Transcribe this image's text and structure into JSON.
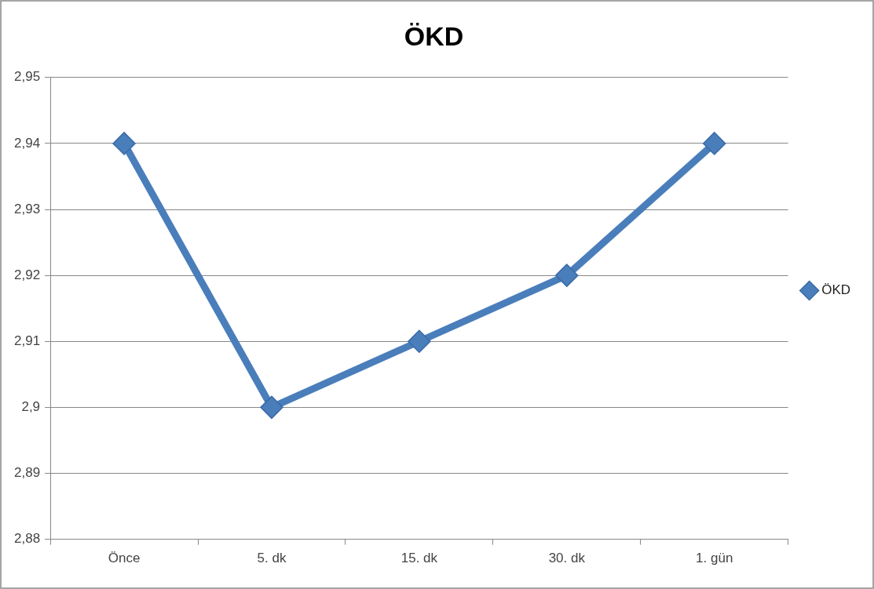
{
  "chart_data": {
    "type": "line",
    "title": "ÖKD",
    "categories": [
      "Önce",
      "5. dk",
      "15. dk",
      "30. dk",
      "1. gün"
    ],
    "series": [
      {
        "name": "ÖKD",
        "color": "#4a7ebb",
        "values": [
          2.94,
          2.9,
          2.91,
          2.92,
          2.94
        ]
      }
    ],
    "ylim": [
      2.88,
      2.95
    ],
    "yticks": [
      {
        "value": 2.88,
        "label": "2,88"
      },
      {
        "value": 2.89,
        "label": "2,89"
      },
      {
        "value": 2.9,
        "label": "2,9"
      },
      {
        "value": 2.91,
        "label": "2,91"
      },
      {
        "value": 2.92,
        "label": "2,92"
      },
      {
        "value": 2.93,
        "label": "2,93"
      },
      {
        "value": 2.94,
        "label": "2,94"
      },
      {
        "value": 2.95,
        "label": "2,95"
      }
    ],
    "grid": "y",
    "legend": "right",
    "marker": "diamond",
    "line_style": "solid"
  }
}
